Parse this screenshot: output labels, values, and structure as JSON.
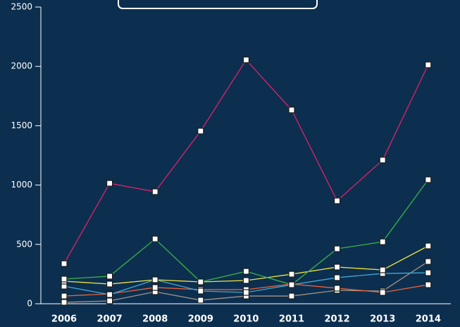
{
  "chart_data": {
    "type": "line",
    "categories": [
      "2006",
      "2007",
      "2008",
      "2009",
      "2010",
      "2011",
      "2012",
      "2013",
      "2014"
    ],
    "series": [
      {
        "color": "#a39383",
        "values": [
          12,
          24,
          101,
          30,
          65,
          65,
          113,
          107,
          356
        ]
      },
      {
        "color": "#e8603c",
        "values": [
          65,
          83,
          137,
          119,
          119,
          166,
          131,
          95,
          160
        ]
      },
      {
        "color": "#3fa7d6",
        "values": [
          148,
          77,
          202,
          107,
          95,
          160,
          220,
          255,
          261
        ]
      },
      {
        "color": "#f0e442",
        "values": [
          190,
          166,
          202,
          184,
          196,
          249,
          309,
          285,
          487
        ]
      },
      {
        "color": "#3cb44b",
        "values": [
          208,
          232,
          546,
          184,
          273,
          160,
          463,
          522,
          1045
        ]
      },
      {
        "color": "#e0216a",
        "values": [
          338,
          1015,
          944,
          1455,
          2055,
          1633,
          867,
          1211,
          2013
        ]
      }
    ],
    "ylim": [
      0,
      2500
    ],
    "yticks": [
      0,
      500,
      1000,
      1500,
      2000,
      2500
    ]
  }
}
